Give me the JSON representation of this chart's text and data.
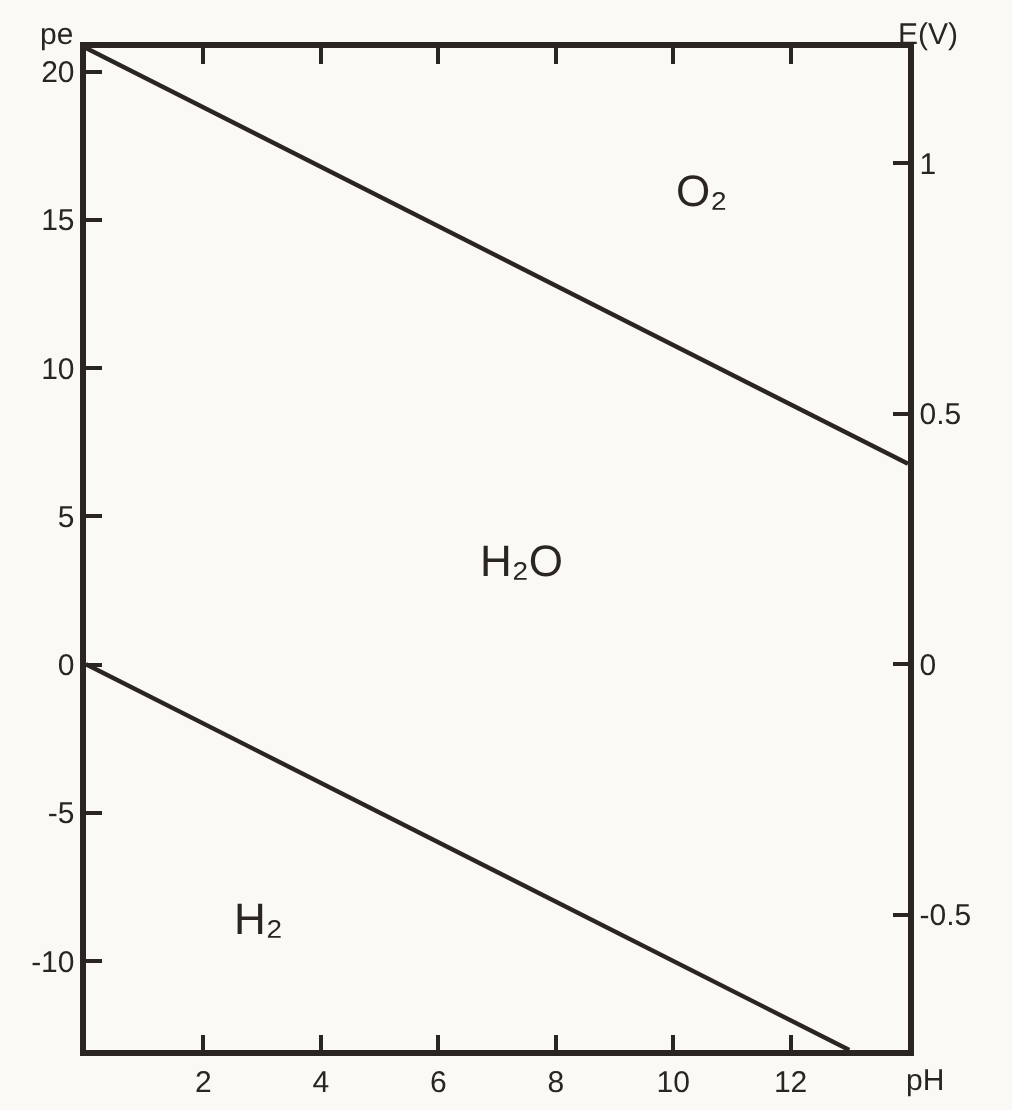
{
  "chart_data": {
    "type": "line",
    "xlabel": "pH",
    "ylabel": "E(V)",
    "y2label": "pe",
    "xlim": [
      0,
      14
    ],
    "xticks": [
      2,
      4,
      6,
      8,
      10,
      12
    ],
    "ylim": [
      -0.77,
      1.23
    ],
    "yticks": [
      -0.5,
      0,
      0.5,
      1
    ],
    "y2lim": [
      -13,
      20.8
    ],
    "y2ticks": [
      -10,
      -5,
      0,
      5,
      10,
      15,
      20
    ],
    "line_style": "solid",
    "series": [
      {
        "color": "#2b2522",
        "x": [
          0,
          14
        ],
        "values": [
          1.23,
          0.4
        ]
      },
      {
        "color": "#2b2522",
        "x": [
          0,
          13
        ],
        "values": [
          0,
          -0.77
        ]
      }
    ],
    "annotations": [
      "O₂",
      "H₂O",
      "H₂"
    ]
  }
}
